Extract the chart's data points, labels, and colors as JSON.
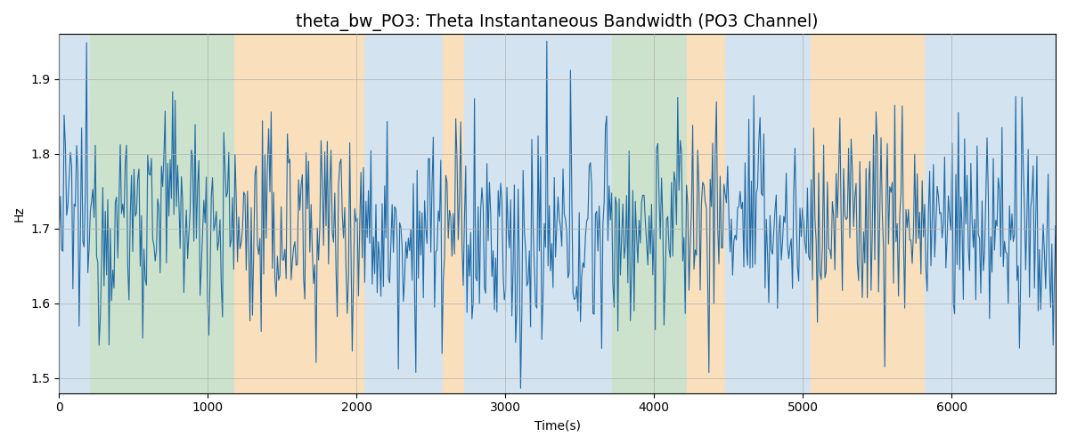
{
  "title": "theta_bw_PO3: Theta Instantaneous Bandwidth (PO3 Channel)",
  "xlabel": "Time(s)",
  "ylabel": "Hz",
  "ylim": [
    1.48,
    1.96
  ],
  "xlim": [
    0,
    6700
  ],
  "line_color": "#1f6aa5",
  "line_width": 0.8,
  "grid_color": "#b0b0b0",
  "bands": [
    {
      "xmin": 0,
      "xmax": 210,
      "color": "#a8c8e0",
      "alpha": 0.5
    },
    {
      "xmin": 210,
      "xmax": 1180,
      "color": "#8fbf8f",
      "alpha": 0.45
    },
    {
      "xmin": 1180,
      "xmax": 2050,
      "color": "#f5c07a",
      "alpha": 0.5
    },
    {
      "xmin": 2050,
      "xmax": 2580,
      "color": "#a8c8e0",
      "alpha": 0.5
    },
    {
      "xmin": 2580,
      "xmax": 2720,
      "color": "#f5c07a",
      "alpha": 0.5
    },
    {
      "xmin": 2720,
      "xmax": 3720,
      "color": "#a8c8e0",
      "alpha": 0.5
    },
    {
      "xmin": 3720,
      "xmax": 4220,
      "color": "#8fbf8f",
      "alpha": 0.45
    },
    {
      "xmin": 4220,
      "xmax": 4480,
      "color": "#f5c07a",
      "alpha": 0.5
    },
    {
      "xmin": 4480,
      "xmax": 5050,
      "color": "#a8c8e0",
      "alpha": 0.5
    },
    {
      "xmin": 5050,
      "xmax": 5820,
      "color": "#f5c07a",
      "alpha": 0.5
    },
    {
      "xmin": 5820,
      "xmax": 6700,
      "color": "#a8c8e0",
      "alpha": 0.5
    }
  ],
  "seed": 12345,
  "n_points": 800,
  "signal_mean": 1.7,
  "signal_std": 0.072,
  "smooth_size": 4,
  "figsize": [
    12,
    5
  ],
  "dpi": 100,
  "title_fontsize": 13.5
}
